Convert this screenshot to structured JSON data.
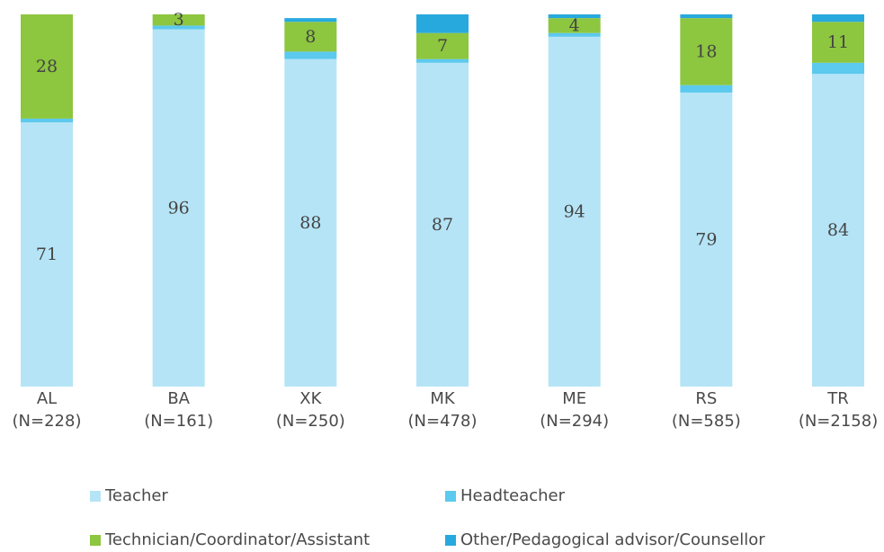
{
  "chart_data": {
    "type": "stacked_bar",
    "categories": [
      "AL",
      "BA",
      "XK",
      "MK",
      "ME",
      "RS",
      "TR"
    ],
    "category_counts": [
      "(N=228)",
      "(N=161)",
      "(N=250)",
      "(N=478)",
      "(N=294)",
      "(N=585)",
      "(N=2158)"
    ],
    "ylim": [
      0,
      100
    ],
    "series": [
      {
        "name": "Teacher",
        "color": "#b5e4f6",
        "values": [
          71,
          96,
          88,
          87,
          94,
          79,
          84
        ],
        "labels": true
      },
      {
        "name": "Headteacher",
        "color": "#5cc9ee",
        "values": [
          1,
          1,
          2,
          1,
          1,
          2,
          3
        ],
        "labels": false
      },
      {
        "name": "Technician/Coordinator/Assistant",
        "color": "#8dc63f",
        "values": [
          28,
          3,
          8,
          7,
          4,
          18,
          11
        ],
        "labels": true
      },
      {
        "name": "Other/Pedagogical advisor/Counsellor",
        "color": "#27a9de",
        "values": [
          0,
          0,
          1,
          5,
          1,
          1,
          2
        ],
        "labels": false
      }
    ]
  }
}
